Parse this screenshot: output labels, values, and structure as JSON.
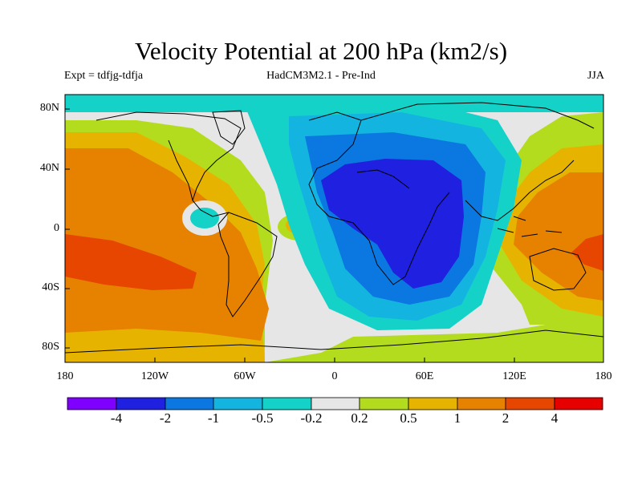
{
  "header": {
    "title": "Velocity Potential at 200 hPa (km2/s)",
    "left": "Expt = tdfjg-tdfja",
    "center": "HadCM3M2.1 - Pre-Ind",
    "right": "JJA"
  },
  "map": {
    "lat_labels": [
      "80N",
      "40N",
      "0",
      "40S",
      "80S"
    ],
    "lon_labels": [
      "180",
      "120W",
      "60W",
      "0",
      "60E",
      "120E",
      "180"
    ]
  },
  "colorbar": {
    "labels": [
      "-4",
      "-2",
      "-1",
      "-0.5",
      "-0.2",
      "0.2",
      "0.5",
      "1",
      "2",
      "4"
    ],
    "colors": [
      "#8000ff",
      "#2020e0",
      "#0a78e0",
      "#14b4e0",
      "#14d2c8",
      "#e6e6e6",
      "#b4dc1e",
      "#e6b400",
      "#e68200",
      "#e64600",
      "#e60000"
    ]
  }
}
